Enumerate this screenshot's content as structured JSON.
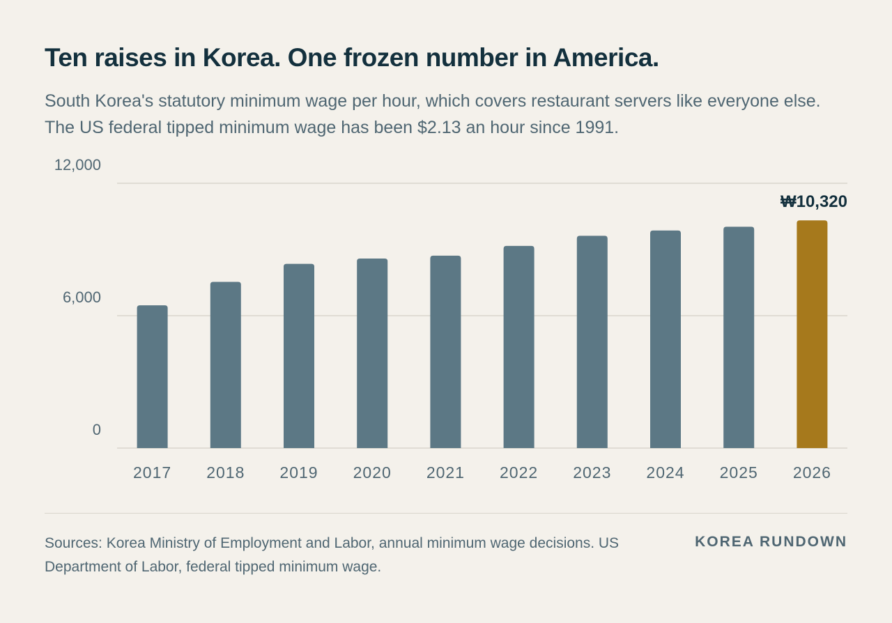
{
  "header": {
    "title": "Ten raises in Korea. One frozen number in America.",
    "subtitle": "South Korea's statutory minimum wage per hour, which covers restaurant servers like everyone else. The US federal tipped minimum wage has been $2.13 an hour since 1991."
  },
  "footer": {
    "sources": "Sources: Korea Ministry of Employment and Labor, annual minimum wage decisions. US Department of Labor, federal tipped minimum wage.",
    "brand": "KOREA RUNDOWN"
  },
  "chart_data": {
    "type": "bar",
    "categories": [
      "2017",
      "2018",
      "2019",
      "2020",
      "2021",
      "2022",
      "2023",
      "2024",
      "2025",
      "2026"
    ],
    "values": [
      6470,
      7530,
      8350,
      8590,
      8720,
      9160,
      9620,
      9860,
      10030,
      10320
    ],
    "ylim": [
      0,
      12000
    ],
    "yticks": [
      0,
      6000,
      12000
    ],
    "ytick_labels": [
      "0",
      "6,000",
      "12,000"
    ],
    "grid": true,
    "annotation": {
      "category": "2026",
      "label": "₩10,320"
    },
    "colors": {
      "bar": "#5c7885",
      "highlight": "#a6791c",
      "grid": "#d9d5cd"
    }
  }
}
